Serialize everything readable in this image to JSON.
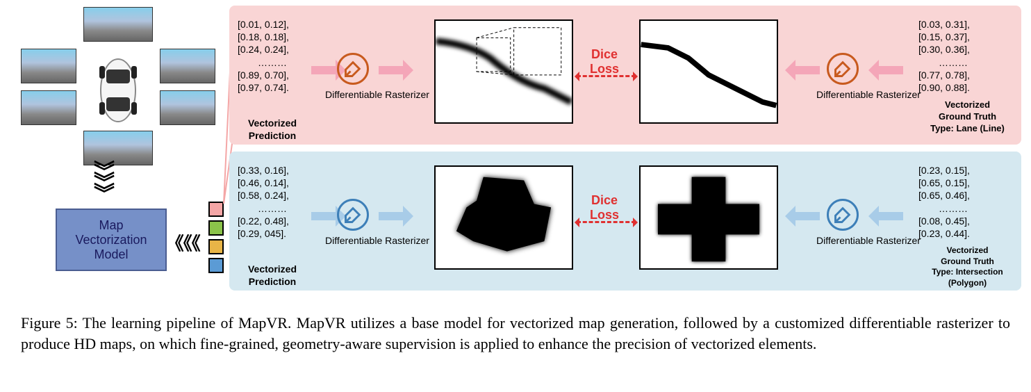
{
  "figure": {
    "number": "Figure 5:",
    "caption": "The learning pipeline of MapVR. MapVR utilizes a base model for vectorized map generation, followed by a customized differentiable rasterizer to produce HD maps, on which fine-grained, geometry-aware supervision is applied to enhance the precision of vectorized elements."
  },
  "model_box": "Map\nVectorization\nModel",
  "top_row": {
    "bg_color": "#f9d5d5",
    "prediction_coords": [
      "[0.01, 0.12],",
      "[0.18, 0.18],",
      "[0.24, 0.24],",
      "………",
      "[0.89, 0.70],",
      "[0.97, 0.74]."
    ],
    "prediction_label": "Vectorized\nPrediction",
    "gt_coords": [
      "[0.03, 0.31],",
      "[0.15, 0.37],",
      "[0.30, 0.36],",
      "………",
      "[0.77, 0.78],",
      "[0.90, 0.88]."
    ],
    "gt_label": "Vectorized\nGround Truth\nType: Lane (Line)",
    "rasterizer_label": "Differentiable\nRasterizer",
    "loss_label": "Dice\nLoss",
    "icon_color": "#c85a1e"
  },
  "bottom_row": {
    "bg_color": "#d5e8f0",
    "prediction_coords": [
      "[0.33, 0.16],",
      "[0.46, 0.14],",
      "[0.58, 0.24],",
      "………",
      "[0.22, 0.48],",
      "[0.29, 045]."
    ],
    "prediction_label": "Vectorized\nPrediction",
    "gt_coords": [
      "[0.23, 0.15],",
      "[0.65, 0.15],",
      "[0.65, 0.46],",
      "………",
      "[0.08, 0.45],",
      "[0.23, 0.44]."
    ],
    "gt_label": "Vectorized\nGround Truth\nType: Intersection (Polygon)",
    "rasterizer_label": "Differentiable\nRasterizer",
    "loss_label": "Dice\nLoss",
    "icon_color": "#3d7fb8"
  },
  "colors": {
    "sq_pink": "#f4a6a6",
    "sq_green": "#8bc34a",
    "sq_orange": "#e8b547",
    "sq_blue": "#5b9bd5",
    "model_bg": "#7690c8",
    "model_border": "#4a5d91",
    "dice_color": "#e03030"
  }
}
